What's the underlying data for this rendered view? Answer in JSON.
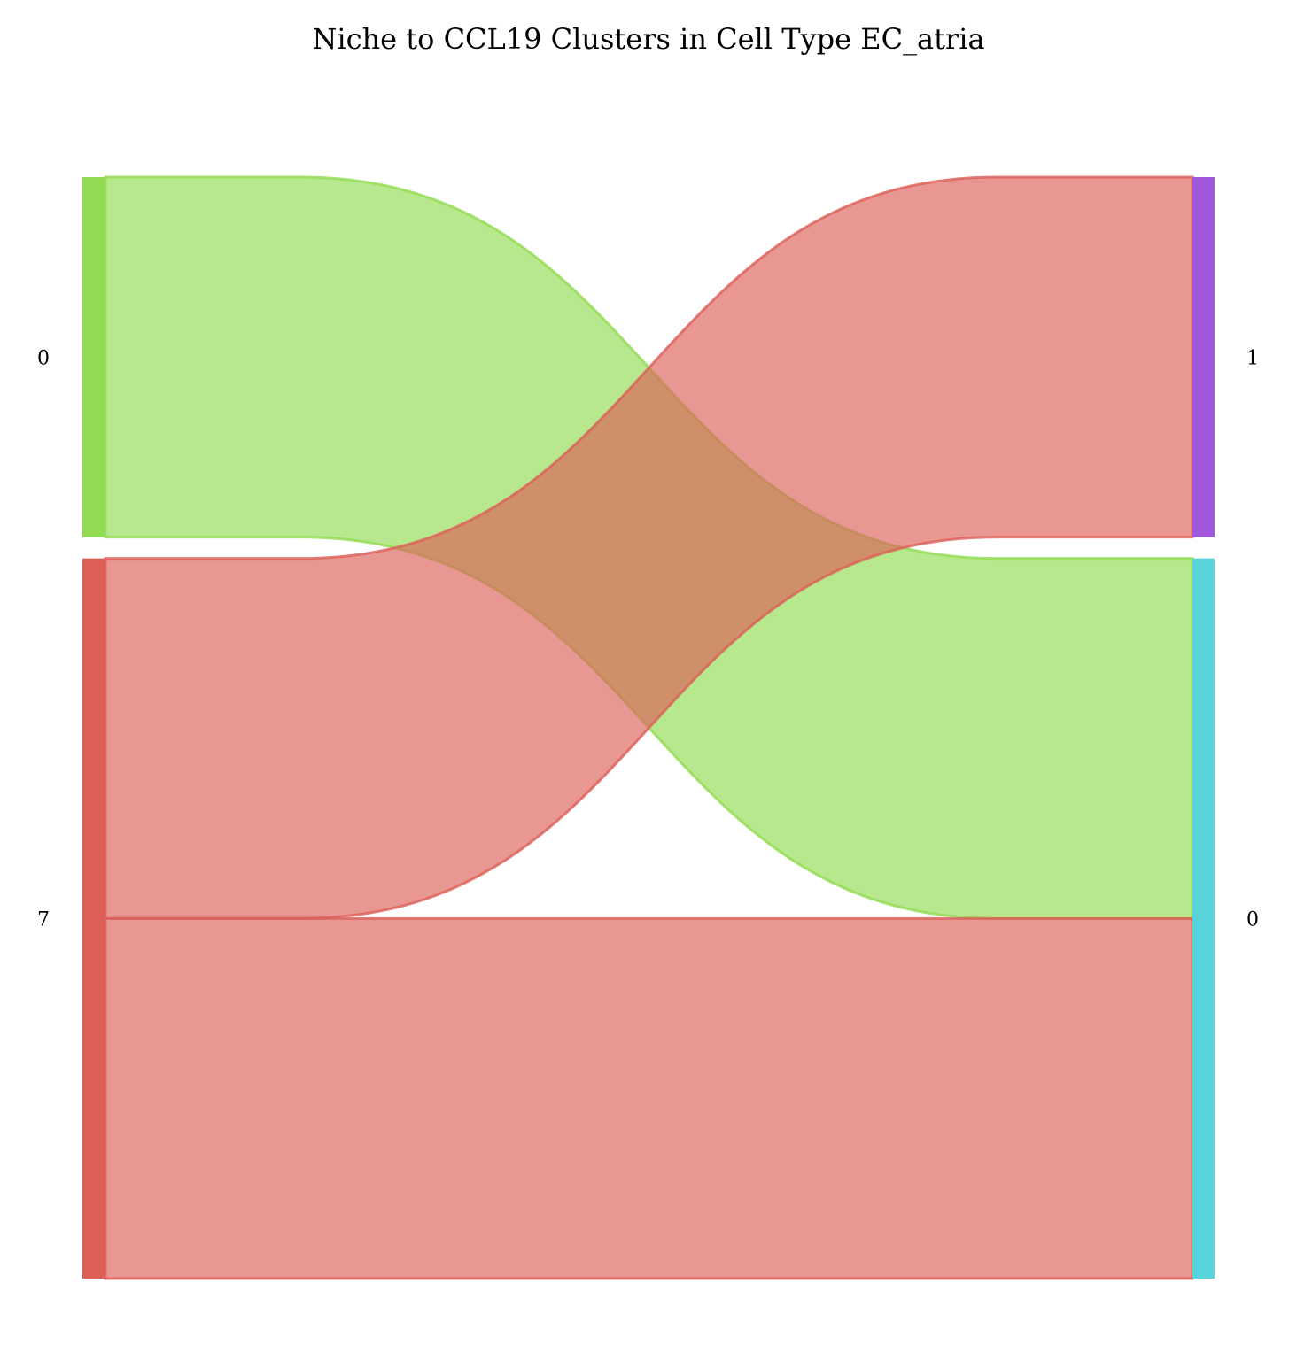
{
  "chart_data": {
    "type": "sankey",
    "title": "Niche to CCL19 Clusters in Cell Type EC_atria",
    "left_nodes": [
      {
        "label": "0",
        "color": "#92db52"
      },
      {
        "label": "7",
        "color": "#db5f57"
      }
    ],
    "right_nodes": [
      {
        "label": "1",
        "color": "#a157db"
      },
      {
        "label": "0",
        "color": "#57d3db"
      }
    ],
    "flows": [
      {
        "source": 0,
        "target": 1,
        "value": 1,
        "color": "#92db52"
      },
      {
        "source": 1,
        "target": 0,
        "value": 1,
        "color": "#db5f57"
      },
      {
        "source": 1,
        "target": 1,
        "value": 1,
        "color": "#db5f57"
      }
    ]
  }
}
